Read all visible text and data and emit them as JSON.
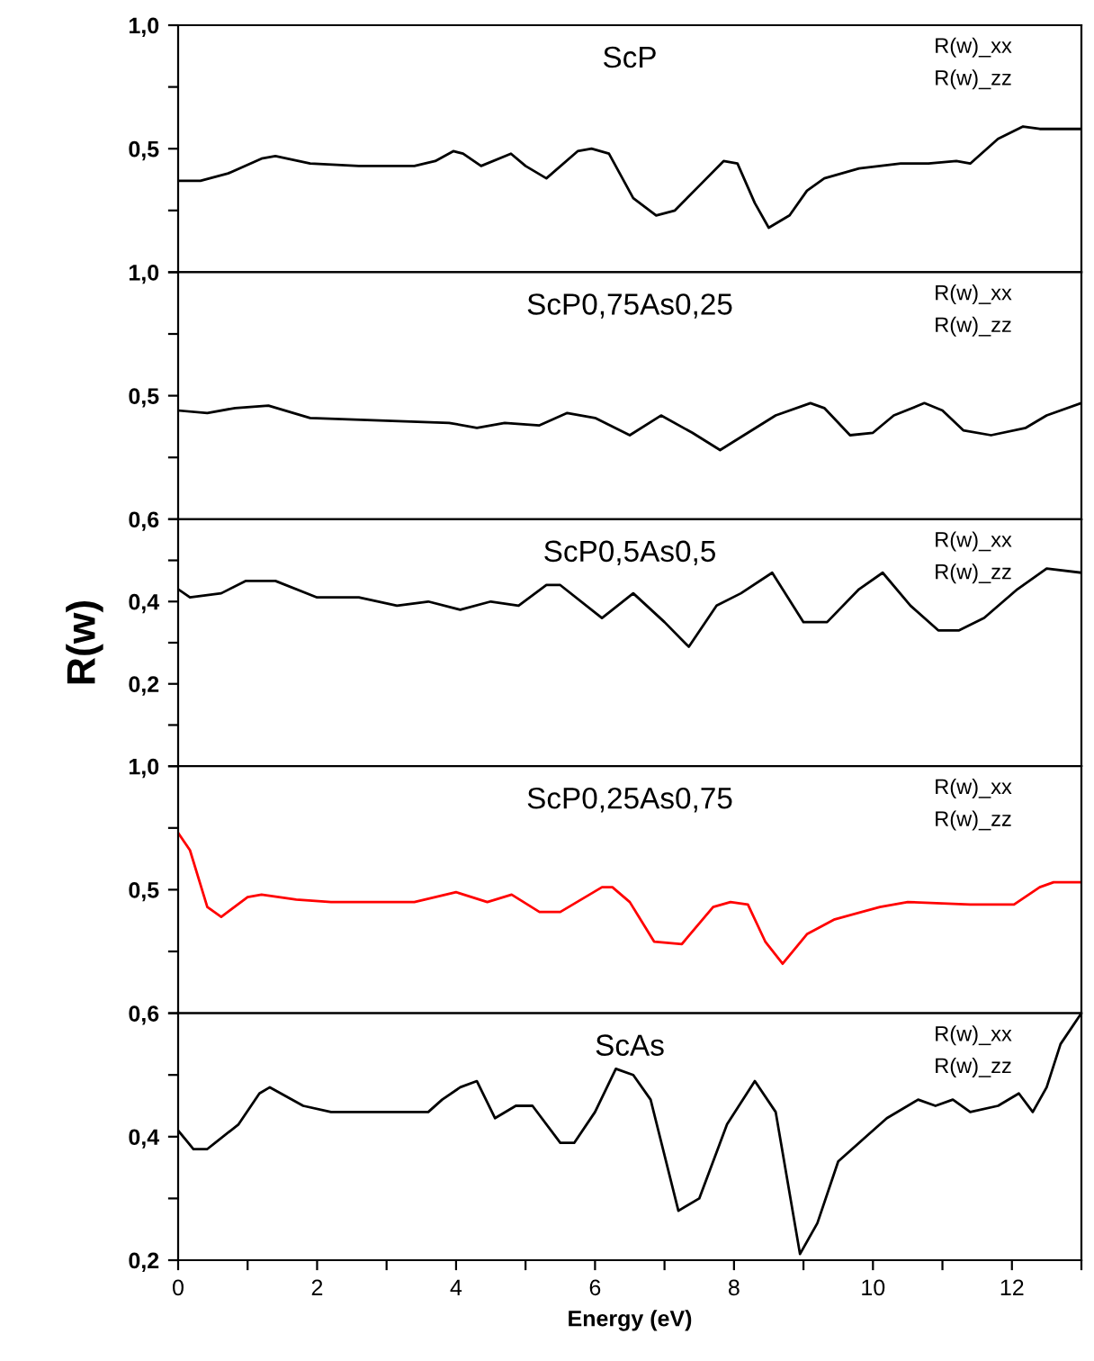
{
  "chart_data": [
    {
      "type": "line",
      "title": "ScP",
      "xlim": [
        0,
        13
      ],
      "ylim": [
        0,
        1
      ],
      "tick_labels": "y",
      "grid": false,
      "legend": false,
      "yticks": [
        {
          "value": 0,
          "label": null
        },
        {
          "value": 0.25,
          "label": null
        },
        {
          "value": 0.5,
          "label": "0,5"
        },
        {
          "value": 0.75,
          "label": null
        },
        {
          "value": 1,
          "label": "1,0"
        }
      ],
      "annotations": [
        "R(w)_xx",
        "R(w)_zz"
      ],
      "series": [
        {
          "color": "#000000",
          "x": [
            0,
            0.32,
            0.72,
            1.2,
            1.4,
            1.9,
            2.6,
            3.4,
            3.7,
            3.96,
            4.1,
            4.36,
            4.79,
            5.0,
            5.3,
            5.75,
            5.95,
            6.2,
            6.55,
            6.88,
            7.15,
            7.5,
            7.85,
            8.05,
            8.3,
            8.5,
            8.8,
            9.05,
            9.3,
            9.8,
            10.4,
            10.8,
            11.2,
            11.4,
            11.8,
            12.16,
            12.4,
            13
          ],
          "values": [
            0.37,
            0.37,
            0.4,
            0.46,
            0.47,
            0.44,
            0.43,
            0.43,
            0.45,
            0.49,
            0.48,
            0.43,
            0.48,
            0.43,
            0.38,
            0.49,
            0.5,
            0.48,
            0.3,
            0.23,
            0.25,
            0.35,
            0.45,
            0.44,
            0.28,
            0.18,
            0.23,
            0.33,
            0.38,
            0.42,
            0.44,
            0.44,
            0.45,
            0.44,
            0.54,
            0.59,
            0.58,
            0.58
          ]
        }
      ]
    },
    {
      "type": "line",
      "title": "ScP0,75As0,25",
      "xlim": [
        0,
        13
      ],
      "ylim": [
        0,
        1
      ],
      "tick_labels": "y",
      "grid": false,
      "legend": false,
      "yticks": [
        {
          "value": 0,
          "label": null
        },
        {
          "value": 0.25,
          "label": null
        },
        {
          "value": 0.5,
          "label": "0,5"
        },
        {
          "value": 0.75,
          "label": null
        },
        {
          "value": 1,
          "label": "1,0"
        }
      ],
      "annotations": [
        "R(w)_xx",
        "R(w)_zz"
      ],
      "series": [
        {
          "color": "#000000",
          "x": [
            0,
            0.42,
            0.82,
            1.3,
            1.9,
            2.9,
            3.9,
            4.3,
            4.7,
            5.2,
            5.6,
            6.0,
            6.5,
            6.95,
            7.4,
            7.8,
            8.2,
            8.6,
            9.1,
            9.3,
            9.67,
            10.0,
            10.3,
            10.74,
            11.0,
            11.3,
            11.7,
            12.2,
            12.5,
            13
          ],
          "values": [
            0.44,
            0.43,
            0.45,
            0.46,
            0.41,
            0.4,
            0.39,
            0.37,
            0.39,
            0.38,
            0.43,
            0.41,
            0.34,
            0.42,
            0.35,
            0.28,
            0.35,
            0.42,
            0.47,
            0.45,
            0.34,
            0.35,
            0.42,
            0.47,
            0.44,
            0.36,
            0.34,
            0.37,
            0.42,
            0.47
          ]
        }
      ]
    },
    {
      "type": "line",
      "title": "ScP0,5As0,5",
      "ylabel": "R(w)",
      "xlim": [
        0,
        13
      ],
      "ylim": [
        0,
        0.6
      ],
      "tick_labels": "y",
      "grid": false,
      "legend": false,
      "yticks": [
        {
          "value": 0,
          "label": null
        },
        {
          "value": 0.1,
          "label": null
        },
        {
          "value": 0.2,
          "label": "0,2"
        },
        {
          "value": 0.3,
          "label": null
        },
        {
          "value": 0.4,
          "label": "0,4"
        },
        {
          "value": 0.5,
          "label": null
        },
        {
          "value": 0.6,
          "label": "0,6"
        }
      ],
      "annotations": [
        "R(w)_xx",
        "R(w)_zz"
      ],
      "series": [
        {
          "color": "#000000",
          "x": [
            0,
            0.17,
            0.62,
            0.97,
            1.4,
            2.0,
            2.6,
            3.15,
            3.6,
            4.06,
            4.5,
            4.9,
            5.3,
            5.5,
            6.1,
            6.55,
            7.0,
            7.35,
            7.75,
            8.1,
            8.55,
            9.0,
            9.34,
            9.8,
            10.14,
            10.54,
            10.94,
            11.24,
            11.6,
            12.08,
            12.5,
            13
          ],
          "values": [
            0.43,
            0.41,
            0.42,
            0.45,
            0.45,
            0.41,
            0.41,
            0.39,
            0.4,
            0.38,
            0.4,
            0.39,
            0.44,
            0.44,
            0.36,
            0.42,
            0.35,
            0.29,
            0.39,
            0.42,
            0.47,
            0.35,
            0.35,
            0.43,
            0.47,
            0.39,
            0.33,
            0.33,
            0.36,
            0.43,
            0.48,
            0.47
          ]
        }
      ]
    },
    {
      "type": "line",
      "title": "ScP0,25As0,75",
      "xlim": [
        0,
        13
      ],
      "ylim": [
        0,
        1
      ],
      "tick_labels": "y",
      "grid": false,
      "legend": false,
      "yticks": [
        {
          "value": 0,
          "label": null
        },
        {
          "value": 0.25,
          "label": null
        },
        {
          "value": 0.5,
          "label": "0,5"
        },
        {
          "value": 0.75,
          "label": null
        },
        {
          "value": 1,
          "label": "1,0"
        }
      ],
      "annotations": [
        "R(w)_xx",
        "R(w)_zz"
      ],
      "series": [
        {
          "color": "#ff0000",
          "x": [
            0,
            0.17,
            0.42,
            0.62,
            1.0,
            1.2,
            1.7,
            2.2,
            2.9,
            3.4,
            4.0,
            4.45,
            4.8,
            5.2,
            5.5,
            6.1,
            6.25,
            6.5,
            6.85,
            7.25,
            7.7,
            7.95,
            8.2,
            8.45,
            8.7,
            9.05,
            9.45,
            10.1,
            10.5,
            11.4,
            12.03,
            12.4,
            12.6,
            13
          ],
          "values": [
            0.73,
            0.66,
            0.43,
            0.39,
            0.47,
            0.48,
            0.46,
            0.45,
            0.45,
            0.45,
            0.49,
            0.45,
            0.48,
            0.41,
            0.41,
            0.51,
            0.51,
            0.45,
            0.29,
            0.28,
            0.43,
            0.45,
            0.44,
            0.29,
            0.2,
            0.32,
            0.38,
            0.43,
            0.45,
            0.44,
            0.44,
            0.51,
            0.53,
            0.53
          ]
        }
      ]
    },
    {
      "type": "line",
      "title": "ScAs",
      "xlabel": "Energy (eV)",
      "xlim": [
        0,
        13
      ],
      "ylim": [
        0.2,
        0.6
      ],
      "grid": false,
      "legend": false,
      "xticks": [
        0,
        {
          "value": 1,
          "label": null
        },
        2,
        {
          "value": 3,
          "label": null
        },
        4,
        {
          "value": 5,
          "label": null
        },
        6,
        {
          "value": 7,
          "label": null
        },
        8,
        {
          "value": 9,
          "label": null
        },
        10,
        {
          "value": 11,
          "label": null
        },
        12,
        {
          "value": 13,
          "label": null
        }
      ],
      "yticks": [
        {
          "value": 0.2,
          "label": "0,2"
        },
        {
          "value": 0.3,
          "label": null
        },
        {
          "value": 0.4,
          "label": "0,4"
        },
        {
          "value": 0.5,
          "label": null
        },
        {
          "value": 0.6,
          "label": "0,6"
        }
      ],
      "annotations": [
        "R(w)_xx",
        "R(w)_zz"
      ],
      "series": [
        {
          "color": "#000000",
          "x": [
            0,
            0.22,
            0.42,
            0.87,
            1.17,
            1.32,
            1.8,
            2.2,
            2.6,
            2.9,
            3.4,
            3.6,
            3.8,
            4.06,
            4.3,
            4.56,
            4.86,
            5.1,
            5.5,
            5.7,
            6.0,
            6.3,
            6.55,
            6.8,
            7.2,
            7.5,
            7.9,
            8.3,
            8.6,
            8.95,
            9.2,
            9.5,
            9.9,
            10.2,
            10.65,
            10.9,
            11.15,
            11.4,
            11.8,
            12.1,
            12.3,
            12.5,
            12.7,
            13
          ],
          "values": [
            0.41,
            0.38,
            0.38,
            0.42,
            0.47,
            0.48,
            0.45,
            0.44,
            0.44,
            0.44,
            0.44,
            0.44,
            0.46,
            0.48,
            0.49,
            0.43,
            0.45,
            0.45,
            0.39,
            0.39,
            0.44,
            0.51,
            0.5,
            0.46,
            0.28,
            0.3,
            0.42,
            0.49,
            0.44,
            0.21,
            0.26,
            0.36,
            0.4,
            0.43,
            0.46,
            0.45,
            0.46,
            0.44,
            0.45,
            0.47,
            0.44,
            0.48,
            0.55,
            0.6
          ]
        }
      ]
    }
  ]
}
